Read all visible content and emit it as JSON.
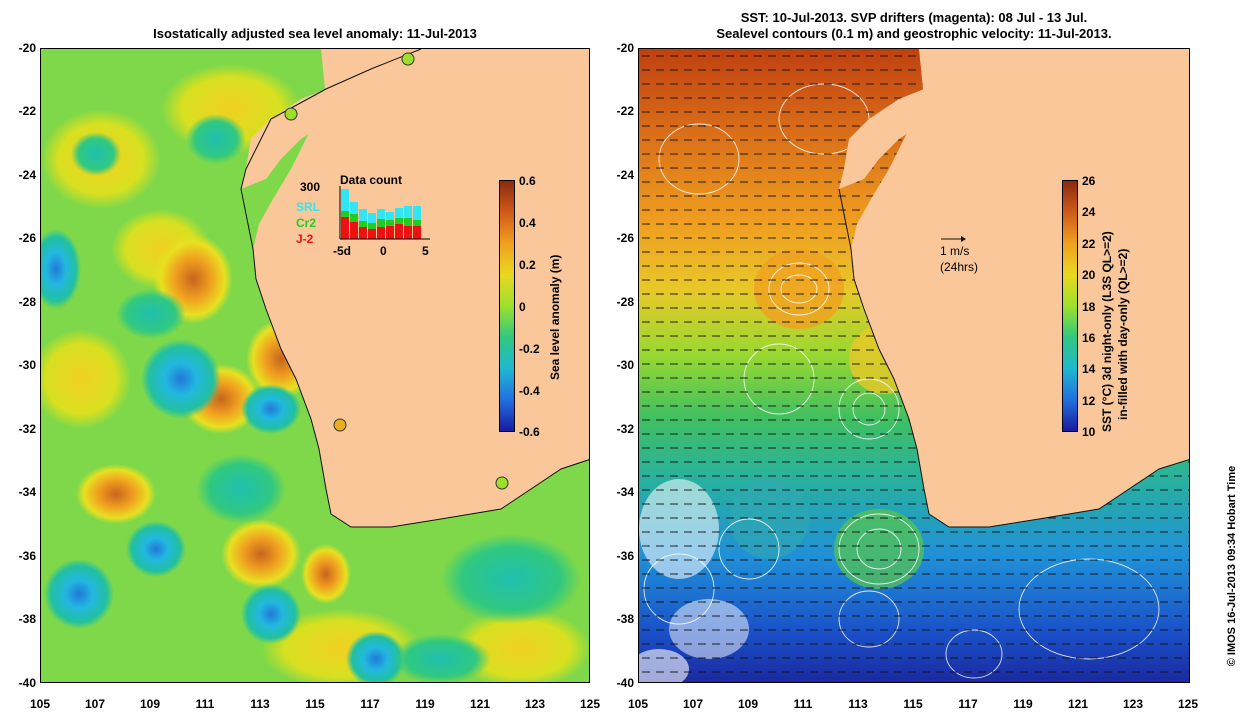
{
  "left_panel": {
    "title": "Isostatically adjusted sea level anomaly: 11-Jul-2013",
    "colorbar_label": "Sea level anomaly (m)",
    "colorbar_ticks": [
      "0.6",
      "0.4",
      "0.2",
      "0",
      "-0.2",
      "-0.4",
      "-0.6"
    ],
    "inset": {
      "title": "Data count",
      "max_label": "300",
      "legend": [
        {
          "label": "SRL",
          "color": "#33e5f2"
        },
        {
          "label": "Cr2",
          "color": "#22cc22"
        },
        {
          "label": "J-2",
          "color": "#ee1111"
        }
      ],
      "x_ticks": [
        "-5d",
        "0",
        "5"
      ]
    }
  },
  "right_panel": {
    "title_line1": "SST: 10-Jul-2013. SVP drifters (magenta): 08 Jul - 13 Jul.",
    "title_line2": "Sealevel contours (0.1 m) and geostrophic velocity: 11-Jul-2013.",
    "colorbar_label_line1": "SST (°C) 3d night-only (L3S QL>=2)",
    "colorbar_label_line2": "in-filled with day-only (QL>=2)",
    "colorbar_ticks": [
      "26",
      "24",
      "22",
      "20",
      "18",
      "16",
      "14",
      "12",
      "10"
    ],
    "velocity_scale_line1": "1 m/s",
    "velocity_scale_line2": "(24hrs)"
  },
  "y_ticks": [
    "-20",
    "-22",
    "-24",
    "-26",
    "-28",
    "-30",
    "-32",
    "-34",
    "-36",
    "-38",
    "-40"
  ],
  "x_ticks": [
    "105",
    "107",
    "109",
    "111",
    "113",
    "115",
    "117",
    "119",
    "121",
    "123",
    "125"
  ],
  "footer": "© IMOS 16-Jul-2013 09:34 Hobart Time",
  "colors": {
    "land": "#f9c79a",
    "ocean_mid": "#9de02c"
  }
}
